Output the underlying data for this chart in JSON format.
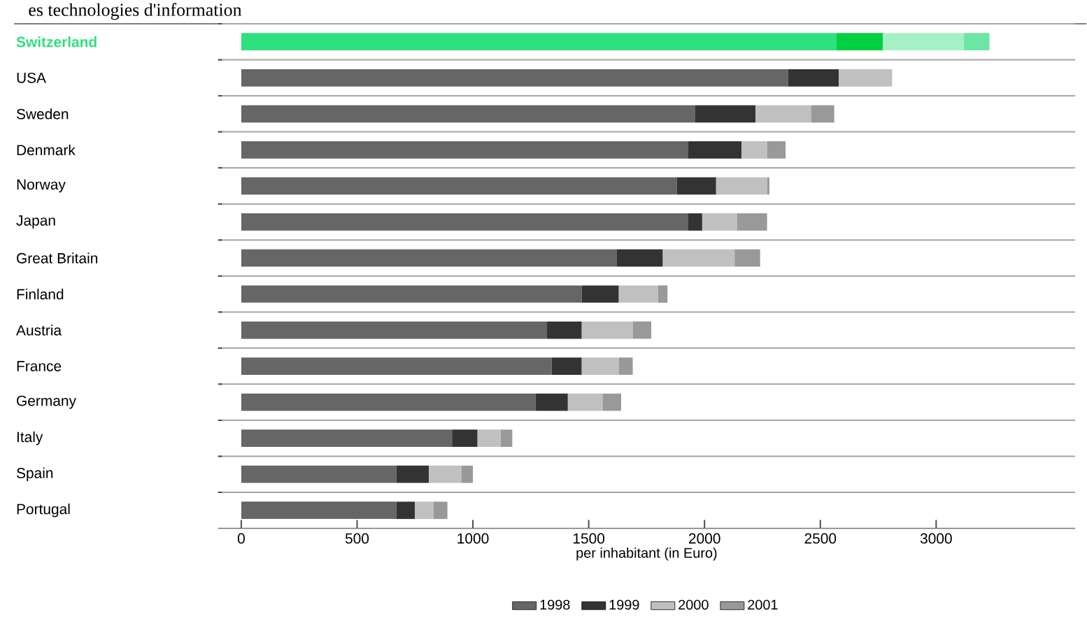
{
  "chart_data": {
    "type": "bar",
    "orientation": "horizontal",
    "stacked": true,
    "title": "es technologies d'information",
    "categories": [
      "Switzerland",
      "USA",
      "Sweden",
      "Denmark",
      "Norway",
      "Japan",
      "Great Britain",
      "Finland",
      "Austria",
      "France",
      "Germany",
      "Italy",
      "Spain",
      "Portugal"
    ],
    "series": [
      {
        "name": "1998",
        "color": "#666666",
        "colors": [
          "#2ee07e",
          "#666666",
          "#666666",
          "#666666",
          "#666666",
          "#666666",
          "#666666",
          "#666666",
          "#666666",
          "#666666",
          "#666666",
          "#666666",
          "#666666",
          "#666666"
        ],
        "values": [
          2570,
          2360,
          1960,
          1930,
          1880,
          1930,
          1620,
          1470,
          1320,
          1340,
          1270,
          910,
          670,
          670
        ]
      },
      {
        "name": "1999",
        "color": "#333333",
        "colors": [
          "#00d040",
          "#333333",
          "#333333",
          "#333333",
          "#333333",
          "#333333",
          "#333333",
          "#333333",
          "#333333",
          "#333333",
          "#333333",
          "#333333",
          "#333333",
          "#333333"
        ],
        "values": [
          200,
          220,
          260,
          230,
          170,
          60,
          200,
          160,
          150,
          130,
          140,
          110,
          140,
          80
        ]
      },
      {
        "name": "2000",
        "color": "#c0c0c0",
        "colors": [
          "#a6f0c6",
          "#c0c0c0",
          "#c0c0c0",
          "#c0c0c0",
          "#c0c0c0",
          "#c0c0c0",
          "#c0c0c0",
          "#c0c0c0",
          "#c0c0c0",
          "#c0c0c0",
          "#c0c0c0",
          "#c0c0c0",
          "#c0c0c0",
          "#c0c0c0"
        ],
        "values": [
          350,
          230,
          240,
          110,
          220,
          150,
          310,
          170,
          220,
          160,
          150,
          100,
          140,
          80
        ]
      },
      {
        "name": "2001",
        "color": "#999999",
        "colors": [
          "#6ce6a4",
          "#999999",
          "#999999",
          "#999999",
          "#999999",
          "#999999",
          "#999999",
          "#999999",
          "#999999",
          "#999999",
          "#999999",
          "#999999",
          "#999999",
          "#999999"
        ],
        "values": [
          110,
          null,
          100,
          80,
          10,
          130,
          110,
          40,
          80,
          60,
          80,
          50,
          50,
          60
        ]
      }
    ],
    "xlabel": "per inhabitant (in Euro)",
    "xlim": [
      -100,
      3600
    ],
    "xticks": [
      0,
      500,
      1000,
      1500,
      2000,
      2500,
      3000
    ],
    "grid": "y",
    "legend": "bottom"
  }
}
